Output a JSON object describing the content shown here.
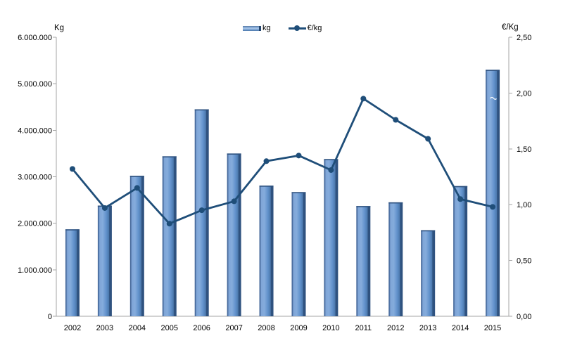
{
  "chart_data": {
    "type": "combo_bar_line",
    "title": "",
    "categories": [
      "2002",
      "2003",
      "2004",
      "2005",
      "2006",
      "2007",
      "2008",
      "2009",
      "2010",
      "2011",
      "2012",
      "2013",
      "2014",
      "2015"
    ],
    "series": [
      {
        "name": "kg",
        "type": "bar",
        "axis": "left",
        "color": "#5B8AC6",
        "values": [
          1870000,
          2380000,
          3020000,
          3440000,
          4450000,
          3500000,
          2810000,
          2670000,
          3380000,
          2370000,
          2450000,
          1850000,
          2800000,
          5300000
        ]
      },
      {
        "name": "€/kg",
        "type": "line",
        "axis": "right",
        "color": "#1F4E79",
        "values": [
          1.32,
          0.97,
          1.15,
          0.83,
          0.95,
          1.03,
          1.39,
          1.44,
          1.31,
          1.95,
          1.76,
          1.59,
          1.05,
          0.98
        ]
      }
    ],
    "left_axis": {
      "title": "Kg",
      "min": 0,
      "max": 6000000,
      "step": 1000000,
      "tick_labels": [
        "0",
        "1.000.000",
        "2.000.000",
        "3.000.000",
        "4.000.000",
        "5.000.000",
        "6.000.000"
      ]
    },
    "right_axis": {
      "title": "€/Kg",
      "min": 0,
      "max": 2.5,
      "step": 0.5,
      "tick_labels": [
        "0,00",
        "0,50",
        "1,00",
        "1,50",
        "2,00",
        "2,50"
      ]
    },
    "legend": {
      "position": "top-center",
      "entries": [
        "kg",
        "€/kg"
      ]
    },
    "grid": false,
    "colors": {
      "bar_fill": "#5B8AC6",
      "bar_highlight": "#85ACDC",
      "bar_edge": "#2F527F",
      "line": "#1F4E79",
      "axis": "#A6A6A6",
      "text": "#000000"
    }
  }
}
